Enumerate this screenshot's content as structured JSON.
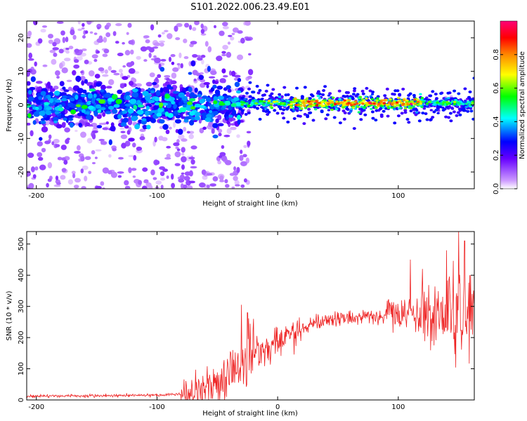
{
  "title": "S101.2022.006.23.49.E01",
  "chart_data": [
    {
      "type": "heatmap",
      "xlabel": "Height of straight line (km)",
      "ylabel": "Frequency (Hz)",
      "xlim": [
        -208,
        163
      ],
      "ylim": [
        -25,
        25
      ],
      "x_ticks": [
        "-200",
        "-100",
        "0",
        "100"
      ],
      "y_ticks": [
        "-20",
        "-10",
        "0",
        "10",
        "20"
      ],
      "colorbar": {
        "label": "Normalized spectral amplitude",
        "range": [
          0,
          1
        ],
        "ticks": [
          "0.0",
          "0.2",
          "0.4",
          "0.6",
          "0.8"
        ],
        "colormap": [
          "#ffffff",
          "#cc99ff",
          "#6600ff",
          "#0000ff",
          "#00ffff",
          "#00ff00",
          "#ffff00",
          "#ff8800",
          "#ff0000",
          "#ff0077"
        ]
      },
      "ridge": {
        "noisy_until_km": -30,
        "stable_center_hz": 0.5,
        "peak_band_km": [
          10,
          120
        ]
      }
    },
    {
      "type": "line",
      "xlabel": "Height of straight line (km)",
      "ylabel": "SNR (10 * v/v)",
      "xlim": [
        -208,
        163
      ],
      "ylim": [
        0,
        540
      ],
      "x_ticks": [
        "-200",
        "-100",
        "0",
        "100"
      ],
      "y_ticks": [
        "0",
        "100",
        "200",
        "300",
        "400",
        "500"
      ],
      "line_color": "#ee2222",
      "trend": {
        "x": [
          -208,
          -100,
          -80,
          -60,
          -40,
          -20,
          0,
          10,
          20,
          30,
          40,
          60,
          80,
          100,
          120,
          140,
          163
        ],
        "y": [
          12,
          15,
          20,
          40,
          80,
          140,
          190,
          215,
          230,
          245,
          255,
          265,
          270,
          275,
          278,
          280,
          282
        ]
      },
      "peaks": {
        "x": [
          -30,
          -25,
          -20,
          110,
          120,
          140,
          150,
          155
        ],
        "y": [
          305,
          280,
          260,
          450,
          420,
          480,
          540,
          510
        ]
      }
    }
  ]
}
